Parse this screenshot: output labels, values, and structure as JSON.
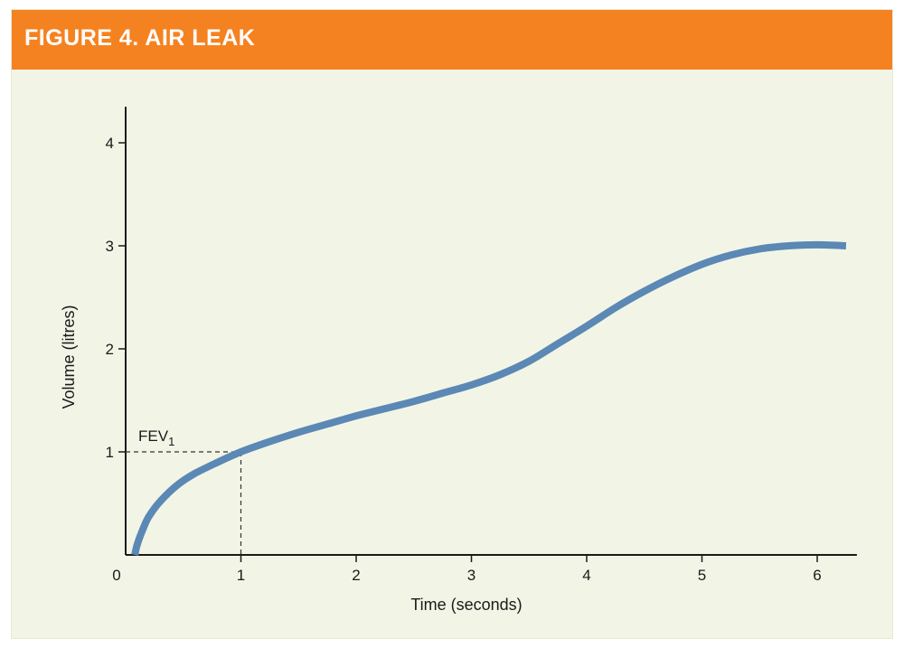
{
  "figure": {
    "title": "FIGURE 4. AIR LEAK",
    "colors": {
      "banner": "#f58220",
      "background": "#f2f5e6",
      "curve": "#5b88b5"
    }
  },
  "chart_data": {
    "type": "line",
    "title": "",
    "xlabel": "Time (seconds)",
    "ylabel": "Volume (litres)",
    "xlim": [
      0,
      6.25
    ],
    "ylim": [
      0,
      4.35
    ],
    "x_ticks": [
      0,
      1,
      2,
      3,
      4,
      5,
      6
    ],
    "y_ticks": [
      1,
      2,
      3,
      4
    ],
    "grid": false,
    "series": [
      {
        "x": [
          0.08,
          0.1,
          0.15,
          0.2,
          0.3,
          0.45,
          0.6,
          0.8,
          1.0,
          1.25,
          1.5,
          1.75,
          2.0,
          2.25,
          2.5,
          2.75,
          3.0,
          3.25,
          3.5,
          3.75,
          4.0,
          4.25,
          4.5,
          4.75,
          5.0,
          5.25,
          5.5,
          5.75,
          6.0,
          6.25
        ],
        "y": [
          0.0,
          0.1,
          0.25,
          0.37,
          0.52,
          0.68,
          0.79,
          0.9,
          1.0,
          1.1,
          1.19,
          1.27,
          1.35,
          1.42,
          1.49,
          1.57,
          1.65,
          1.75,
          1.88,
          2.05,
          2.22,
          2.4,
          2.56,
          2.7,
          2.82,
          2.91,
          2.97,
          3.0,
          3.01,
          3.0
        ]
      }
    ],
    "annotations": [
      {
        "text": "FEV",
        "subscript": "1",
        "x": 1.0,
        "y": 1.0
      }
    ]
  }
}
